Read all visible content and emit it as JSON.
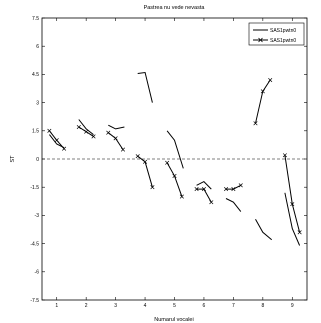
{
  "chart_data": {
    "type": "line",
    "title": "Pastrea nu vede nevasta",
    "xlabel": "Numarul vocalei",
    "ylabel": "ST",
    "xlim": [
      0.5,
      9.5
    ],
    "ylim": [
      -7.5,
      7.5
    ],
    "xticks": [
      1,
      2,
      3,
      4,
      5,
      6,
      7,
      8,
      9
    ],
    "yticks": [
      -7.5,
      -6,
      -4.5,
      -3,
      -1.5,
      0,
      1.5,
      3,
      4.5,
      6,
      7.5
    ],
    "xtick_labels": [
      "1",
      "2",
      "3",
      "4",
      "5",
      "6",
      "7",
      "8",
      "9"
    ],
    "ytick_labels": [
      "-7.5",
      "-6",
      "-4.5",
      "-3",
      "-1.5",
      "0",
      "1.5",
      "3",
      "4.5",
      "6",
      "7.5"
    ],
    "zero_line": {
      "y": 0,
      "style": "dashed"
    },
    "grid": false,
    "legend": {
      "position": "top-right",
      "entries": [
        "SAS1pwtn0",
        "SAS1pwtn0"
      ]
    },
    "series": [
      {
        "name": "SAS1pwtn0",
        "color": "#000000",
        "marker": "none",
        "segments": [
          [
            [
              0.75,
              1.3
            ],
            [
              1.0,
              0.8
            ],
            [
              1.25,
              0.6
            ]
          ],
          [
            [
              1.75,
              2.1
            ],
            [
              2.0,
              1.6
            ],
            [
              2.25,
              1.3
            ]
          ],
          [
            [
              2.75,
              1.8
            ],
            [
              3.0,
              1.6
            ],
            [
              3.3,
              1.7
            ]
          ],
          [
            [
              3.75,
              4.55
            ],
            [
              4.0,
              4.6
            ],
            [
              4.25,
              3.0
            ]
          ],
          [
            [
              4.75,
              1.5
            ],
            [
              5.0,
              1.0
            ],
            [
              5.3,
              -0.5
            ]
          ],
          [
            [
              5.75,
              -1.4
            ],
            [
              6.0,
              -1.2
            ],
            [
              6.25,
              -1.6
            ]
          ],
          [
            [
              6.75,
              -2.1
            ],
            [
              7.0,
              -2.3
            ],
            [
              7.25,
              -2.8
            ]
          ],
          [
            [
              7.75,
              -3.2
            ],
            [
              8.0,
              -3.9
            ],
            [
              8.3,
              -4.3
            ]
          ],
          [
            [
              8.75,
              -1.8
            ],
            [
              9.0,
              -3.7
            ],
            [
              9.25,
              -4.6
            ]
          ]
        ]
      },
      {
        "name": "SAS1pwtn0",
        "color": "#000000",
        "marker": "x",
        "segments": [
          [
            [
              0.75,
              1.5
            ],
            [
              1.0,
              1.0
            ],
            [
              1.25,
              0.55
            ]
          ],
          [
            [
              1.75,
              1.7
            ],
            [
              2.0,
              1.45
            ],
            [
              2.25,
              1.2
            ]
          ],
          [
            [
              2.75,
              1.4
            ],
            [
              3.0,
              1.1
            ],
            [
              3.25,
              0.5
            ]
          ],
          [
            [
              3.75,
              0.15
            ],
            [
              4.0,
              -0.15
            ],
            [
              4.25,
              -1.5
            ]
          ],
          [
            [
              4.75,
              -0.2
            ],
            [
              5.0,
              -0.9
            ],
            [
              5.25,
              -2.0
            ]
          ],
          [
            [
              5.75,
              -1.6
            ],
            [
              6.0,
              -1.6
            ],
            [
              6.25,
              -2.3
            ]
          ],
          [
            [
              6.75,
              -1.6
            ],
            [
              7.0,
              -1.6
            ],
            [
              7.25,
              -1.4
            ]
          ],
          [
            [
              7.75,
              1.9
            ],
            [
              8.0,
              3.6
            ],
            [
              8.25,
              4.2
            ]
          ],
          [
            [
              8.75,
              0.2
            ],
            [
              9.0,
              -2.4
            ],
            [
              9.25,
              -3.9
            ]
          ]
        ]
      }
    ]
  }
}
